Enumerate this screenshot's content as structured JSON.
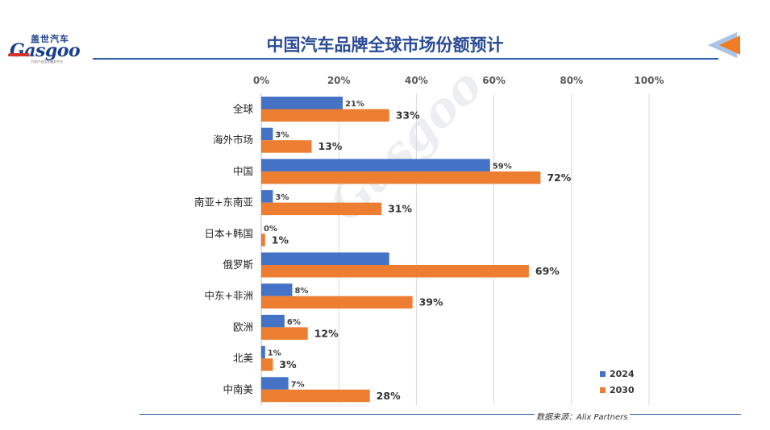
{
  "header": {
    "logo_cn": "盖世汽车",
    "logo_en": "Gasgoo",
    "logo_tagline": "汽车产业信息服务平台",
    "title": "中国汽车品牌全球市场份额预计"
  },
  "source": {
    "text": "数据来源：Alix Partners"
  },
  "colors": {
    "series_2024": "#4472c4",
    "series_2030": "#ed7d31",
    "title": "#2c4b95",
    "line": "#2e5fa8",
    "corner_light": "#a8c4e6",
    "corner_orange": "#f07d23"
  },
  "chart_data": {
    "type": "bar",
    "orientation": "horizontal",
    "title": "中国汽车品牌全球市场份额预计",
    "categories": [
      "全球",
      "海外市场",
      "中国",
      "南亚+东南亚",
      "日本+韩国",
      "俄罗斯",
      "中东+非洲",
      "欧洲",
      "北美",
      "中南美"
    ],
    "series": [
      {
        "name": "2024",
        "values": [
          21,
          3,
          59,
          3,
          0,
          33,
          8,
          6,
          1,
          7
        ],
        "labels": [
          "21%",
          "3%",
          "59%",
          "3%",
          "0%",
          "",
          "8%",
          "6%",
          "1%",
          "7%"
        ]
      },
      {
        "name": "2030",
        "values": [
          33,
          13,
          72,
          31,
          1,
          69,
          39,
          12,
          3,
          28
        ],
        "labels": [
          "33%",
          "13%",
          "72%",
          "31%",
          "1%",
          "69%",
          "39%",
          "12%",
          "3%",
          "28%"
        ]
      }
    ],
    "xlim": [
      0,
      100
    ],
    "x_ticks": [
      "0%",
      "20%",
      "40%",
      "60%",
      "80%",
      "100%"
    ],
    "x_axis_position": "top",
    "grid": true,
    "legend_position": "bottom-right"
  }
}
